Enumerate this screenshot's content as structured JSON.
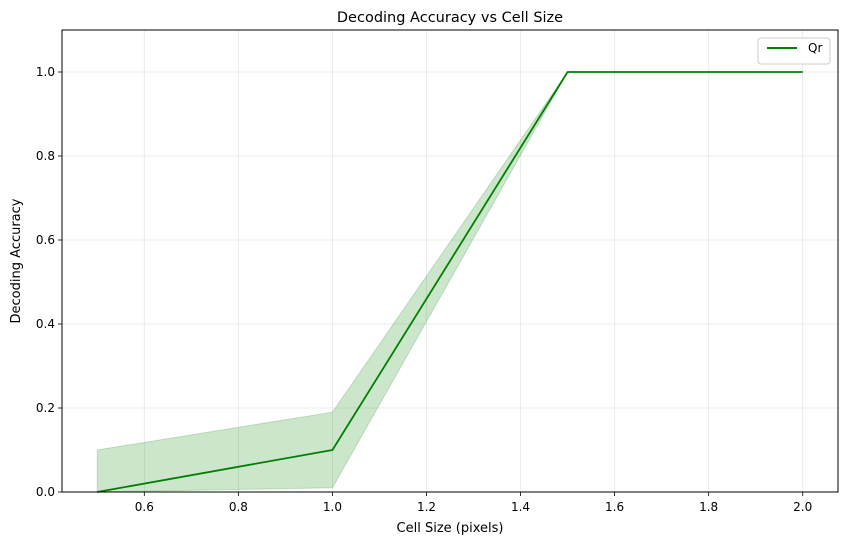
{
  "chart_data": {
    "type": "line",
    "title": "Decoding Accuracy vs Cell Size",
    "xlabel": "Cell Size (pixels)",
    "ylabel": "Decoding Accuracy",
    "xlim": [
      0.425,
      2.075
    ],
    "ylim": [
      0.0,
      1.1
    ],
    "x_ticks": [
      0.6,
      0.8,
      1.0,
      1.2,
      1.4,
      1.6,
      1.8,
      2.0
    ],
    "x_tick_labels": [
      "0.6",
      "0.8",
      "1.0",
      "1.2",
      "1.4",
      "1.6",
      "1.8",
      "2.0"
    ],
    "y_ticks": [
      0.0,
      0.2,
      0.4,
      0.6,
      0.8,
      1.0
    ],
    "y_tick_labels": [
      "0.0",
      "0.2",
      "0.4",
      "0.6",
      "0.8",
      "1.0"
    ],
    "grid": true,
    "legend_position": "top-right",
    "series": [
      {
        "name": "Qr",
        "color": "#008000",
        "x": [
          0.5,
          1.0,
          1.5,
          2.0
        ],
        "y": [
          0.0,
          0.1,
          1.0,
          1.0
        ],
        "band_lower": [
          0.0,
          0.01,
          1.0,
          1.0
        ],
        "band_upper": [
          0.1,
          0.19,
          1.0,
          1.0
        ],
        "band_color": "#008000",
        "band_opacity": 0.2
      }
    ]
  }
}
